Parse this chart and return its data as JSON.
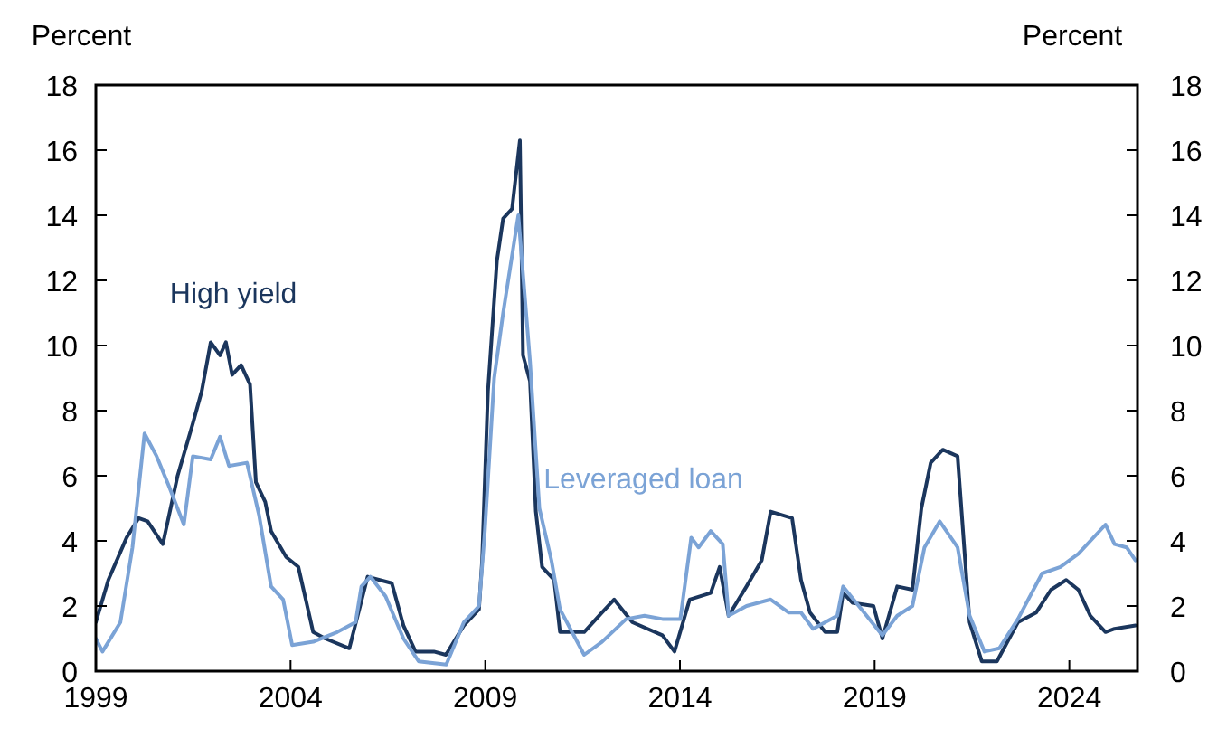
{
  "chart_data": {
    "type": "line",
    "ylabel": "Percent",
    "y2label": "Percent",
    "xlim": [
      1999,
      2025.75
    ],
    "xticks": [
      1999,
      2004,
      2009,
      2014,
      2019,
      2024
    ],
    "ylim": [
      0,
      18
    ],
    "yticks": [
      0,
      2,
      4,
      6,
      8,
      10,
      12,
      14,
      16,
      18
    ],
    "y2lim": [
      0,
      18
    ],
    "y2ticks": [
      0,
      2,
      4,
      6,
      8,
      10,
      12,
      14,
      16,
      18
    ],
    "grid": false,
    "series": [
      {
        "name": "High yield",
        "color": "#1b365d",
        "x": [
          1999.0,
          1999.32,
          1999.79,
          2000.1,
          2000.33,
          2000.72,
          2001.1,
          2001.49,
          2001.72,
          2001.95,
          2002.19,
          2002.34,
          2002.5,
          2002.73,
          2002.96,
          2003.11,
          2003.35,
          2003.5,
          2003.89,
          2004.2,
          2004.58,
          2004.89,
          2005.51,
          2005.98,
          2006.29,
          2006.6,
          2006.9,
          2007.21,
          2007.68,
          2007.99,
          2008.45,
          2008.84,
          2008.92,
          2009.07,
          2009.3,
          2009.46,
          2009.69,
          2009.89,
          2009.97,
          2010.15,
          2010.3,
          2010.46,
          2010.77,
          2010.92,
          2011.54,
          2012.0,
          2012.31,
          2012.78,
          2013.55,
          2013.86,
          2014.25,
          2014.79,
          2015.02,
          2015.25,
          2015.71,
          2016.1,
          2016.33,
          2016.88,
          2017.11,
          2017.34,
          2017.73,
          2018.04,
          2018.19,
          2018.43,
          2018.97,
          2019.2,
          2019.58,
          2019.97,
          2020.2,
          2020.44,
          2020.75,
          2021.13,
          2021.44,
          2021.75,
          2022.14,
          2022.68,
          2023.15,
          2023.53,
          2023.92,
          2024.23,
          2024.54,
          2024.93,
          2025.16,
          2025.7
        ],
        "values": [
          1.5,
          2.8,
          4.1,
          4.7,
          4.6,
          3.9,
          6.0,
          7.6,
          8.6,
          10.1,
          9.7,
          10.1,
          9.1,
          9.4,
          8.8,
          5.8,
          5.2,
          4.3,
          3.5,
          3.2,
          1.2,
          1.0,
          0.7,
          2.9,
          2.8,
          2.7,
          1.4,
          0.6,
          0.6,
          0.5,
          1.4,
          1.9,
          3.4,
          8.6,
          12.6,
          13.9,
          14.2,
          16.3,
          9.7,
          8.9,
          4.9,
          3.2,
          2.8,
          1.2,
          1.2,
          1.8,
          2.2,
          1.5,
          1.1,
          0.6,
          2.2,
          2.4,
          3.2,
          1.7,
          2.6,
          3.4,
          4.9,
          4.7,
          2.8,
          1.8,
          1.2,
          1.2,
          2.4,
          2.1,
          2.0,
          1.0,
          2.6,
          2.5,
          5.0,
          6.4,
          6.8,
          6.6,
          1.5,
          0.3,
          0.3,
          1.5,
          1.8,
          2.5,
          2.8,
          2.5,
          1.7,
          1.2,
          1.3,
          1.4
        ]
      },
      {
        "name": "Leveraged loan",
        "color": "#7ba3d6",
        "x": [
          1999.0,
          1999.17,
          1999.63,
          1999.94,
          2000.25,
          2000.56,
          2000.87,
          2001.26,
          2001.49,
          2001.95,
          2002.19,
          2002.42,
          2002.88,
          2003.19,
          2003.5,
          2003.81,
          2004.04,
          2004.58,
          2005.2,
          2005.67,
          2005.82,
          2006.05,
          2006.44,
          2006.9,
          2007.29,
          2008.0,
          2008.45,
          2008.84,
          2008.99,
          2009.23,
          2009.46,
          2009.85,
          2010.15,
          2010.39,
          2010.7,
          2010.92,
          2011.54,
          2012.0,
          2012.62,
          2013.09,
          2013.55,
          2014.01,
          2014.29,
          2014.48,
          2014.79,
          2015.1,
          2015.25,
          2015.71,
          2016.33,
          2016.79,
          2017.11,
          2017.42,
          2018.04,
          2018.19,
          2018.66,
          2019.2,
          2019.58,
          2019.97,
          2020.28,
          2020.67,
          2021.13,
          2021.44,
          2021.82,
          2022.2,
          2022.68,
          2023.3,
          2023.77,
          2024.23,
          2024.93,
          2025.16,
          2025.47,
          2025.7
        ],
        "values": [
          1.0,
          0.6,
          1.5,
          3.8,
          7.3,
          6.6,
          5.7,
          4.5,
          6.6,
          6.5,
          7.2,
          6.3,
          6.4,
          4.8,
          2.6,
          2.2,
          0.8,
          0.9,
          1.2,
          1.5,
          2.6,
          2.9,
          2.3,
          1.0,
          0.3,
          0.2,
          1.5,
          2.0,
          4.3,
          9.0,
          11.0,
          14.0,
          9.5,
          5.0,
          3.4,
          1.9,
          0.5,
          0.9,
          1.6,
          1.7,
          1.6,
          1.6,
          4.1,
          3.8,
          4.3,
          3.9,
          1.7,
          2.0,
          2.2,
          1.8,
          1.8,
          1.3,
          1.7,
          2.6,
          1.9,
          1.1,
          1.7,
          2.0,
          3.8,
          4.6,
          3.8,
          1.7,
          0.6,
          0.7,
          1.6,
          3.0,
          3.2,
          3.6,
          4.5,
          3.9,
          3.8,
          3.4
        ]
      }
    ]
  }
}
